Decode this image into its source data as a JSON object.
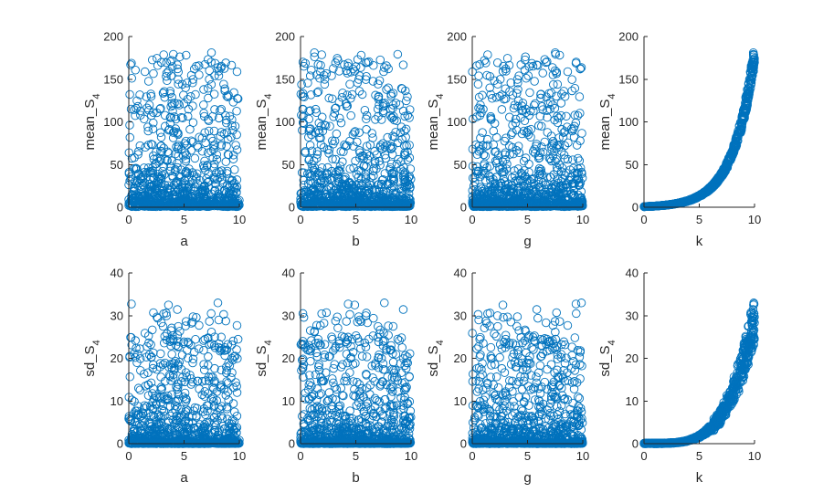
{
  "chart_data": [
    {
      "type": "scatter",
      "xlabel": "a",
      "ylabel": "mean_S_4",
      "xlim": [
        0,
        10
      ],
      "ylim": [
        0,
        200
      ],
      "xticks": [
        0,
        5,
        10
      ],
      "yticks": [
        0,
        50,
        100,
        150,
        200
      ],
      "x_dependence": "none",
      "y_distribution": "exponential-in-k",
      "n_points": 1000
    },
    {
      "type": "scatter",
      "xlabel": "b",
      "ylabel": "mean_S_4",
      "xlim": [
        0,
        10
      ],
      "ylim": [
        0,
        200
      ],
      "xticks": [
        0,
        5,
        10
      ],
      "yticks": [
        0,
        50,
        100,
        150,
        200
      ],
      "x_dependence": "none",
      "y_distribution": "exponential-in-k",
      "n_points": 1000
    },
    {
      "type": "scatter",
      "xlabel": "g",
      "ylabel": "mean_S_4",
      "xlim": [
        0,
        10
      ],
      "ylim": [
        0,
        200
      ],
      "xticks": [
        0,
        5,
        10
      ],
      "yticks": [
        0,
        50,
        100,
        150,
        200
      ],
      "x_dependence": "none",
      "y_distribution": "exponential-in-k",
      "n_points": 1000
    },
    {
      "type": "scatter",
      "xlabel": "k",
      "ylabel": "mean_S_4",
      "xlim": [
        0,
        10
      ],
      "ylim": [
        0,
        200
      ],
      "xticks": [
        0,
        5,
        10
      ],
      "yticks": [
        0,
        50,
        100,
        150,
        200
      ],
      "x_dependence": "exponential",
      "curve_points": [
        [
          0,
          1
        ],
        [
          2,
          3
        ],
        [
          4,
          8
        ],
        [
          5,
          15
        ],
        [
          6,
          26
        ],
        [
          7,
          45
        ],
        [
          8,
          75
        ],
        [
          9,
          120
        ],
        [
          10,
          185
        ]
      ],
      "n_points": 1000
    },
    {
      "type": "scatter",
      "xlabel": "a",
      "ylabel": "sd_S_4",
      "xlim": [
        0,
        10
      ],
      "ylim": [
        0,
        40
      ],
      "xticks": [
        0,
        5,
        10
      ],
      "yticks": [
        0,
        10,
        20,
        30,
        40
      ],
      "x_dependence": "none",
      "y_distribution": "exponential-in-k",
      "n_points": 1000
    },
    {
      "type": "scatter",
      "xlabel": "b",
      "ylabel": "sd_S_4",
      "xlim": [
        0,
        10
      ],
      "ylim": [
        0,
        40
      ],
      "xticks": [
        0,
        5,
        10
      ],
      "yticks": [
        0,
        10,
        20,
        30,
        40
      ],
      "x_dependence": "none",
      "y_distribution": "exponential-in-k",
      "n_points": 1000
    },
    {
      "type": "scatter",
      "xlabel": "g",
      "ylabel": "sd_S_4",
      "xlim": [
        0,
        10
      ],
      "ylim": [
        0,
        40
      ],
      "xticks": [
        0,
        5,
        10
      ],
      "yticks": [
        0,
        10,
        20,
        30,
        40
      ],
      "x_dependence": "none",
      "y_distribution": "exponential-in-k",
      "n_points": 1000
    },
    {
      "type": "scatter",
      "xlabel": "k",
      "ylabel": "sd_S_4",
      "xlim": [
        0,
        10
      ],
      "ylim": [
        0,
        40
      ],
      "xticks": [
        0,
        5,
        10
      ],
      "yticks": [
        0,
        10,
        20,
        30,
        40
      ],
      "x_dependence": "exponential",
      "curve_points": [
        [
          0,
          0
        ],
        [
          4,
          0.5
        ],
        [
          5,
          1
        ],
        [
          6,
          3
        ],
        [
          7,
          6
        ],
        [
          8,
          11
        ],
        [
          9,
          19
        ],
        [
          10,
          32
        ]
      ],
      "n_points": 1000
    }
  ],
  "style": {
    "marker": "open-circle",
    "marker_color": "#0072bd",
    "axis_color": "#262626",
    "grid": false,
    "layout": "2 rows x 4 columns"
  }
}
